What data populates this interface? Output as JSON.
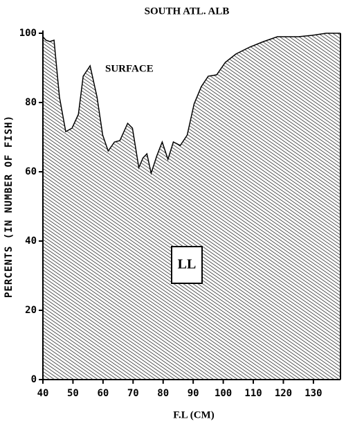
{
  "chart_data": {
    "type": "area",
    "title": "SOUTH ATL. ALB",
    "x_label": "F.L (CM)",
    "y_label": "PERCENTS (IN NUMBER OF FISH)",
    "annotations": [
      "SURFACE",
      "LL"
    ],
    "x": [
      40,
      41,
      42.3,
      43.7,
      45.5,
      47.6,
      49.7,
      51.8,
      53.4,
      55.7,
      58,
      59.9,
      61.7,
      63.8,
      65.6,
      68.2,
      69.8,
      71.9,
      73.3,
      74.6,
      76,
      77.9,
      79.7,
      81.6,
      83.4,
      85.7,
      88,
      90.3,
      92.7,
      95,
      97.8,
      100.7,
      104.2,
      108.8,
      113.4,
      118,
      125,
      129.6,
      134.2,
      139
    ],
    "values": [
      99,
      98,
      97.6,
      98,
      81.6,
      71.6,
      72.6,
      76.6,
      87.6,
      90.6,
      81.6,
      70.6,
      66,
      68.6,
      69,
      74,
      72.6,
      61.2,
      64,
      65.2,
      59.6,
      64.6,
      68.6,
      63.6,
      68.6,
      67.6,
      70.6,
      79.6,
      84.6,
      87.6,
      88,
      91.6,
      94,
      96,
      97.6,
      99,
      99,
      99.4,
      100,
      100
    ],
    "color": "#000000",
    "xlim": [
      40,
      139
    ],
    "ylim": [
      0,
      100
    ],
    "xticks": [
      40,
      50,
      60,
      70,
      80,
      90,
      100,
      110,
      120,
      130
    ],
    "yticks": [
      0,
      20,
      40,
      60,
      80,
      100
    ]
  }
}
